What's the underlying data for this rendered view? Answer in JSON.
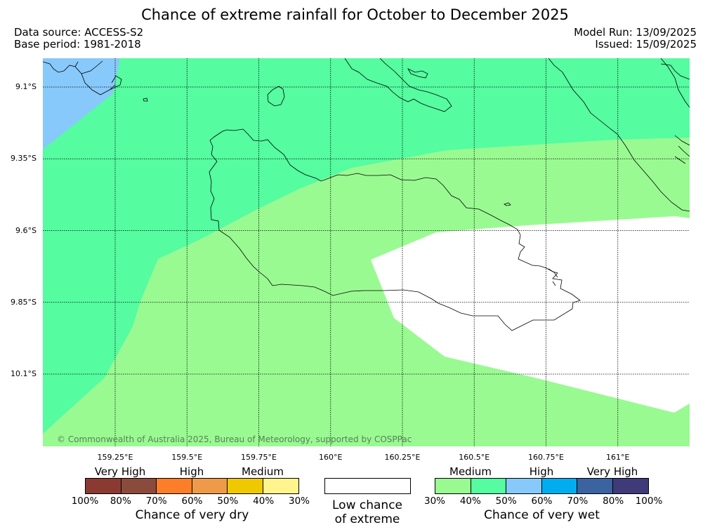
{
  "title": "Chance of extreme rainfall for October to December 2025",
  "meta": {
    "source": "Data source: ACCESS-S2",
    "base_period": "Base period: 1981-2018",
    "model_run": "Model Run: 13/09/2025",
    "issued": "Issued: 15/09/2025"
  },
  "map": {
    "lon_range": [
      159.03,
      161.25
    ],
    "lat_range": [
      -10.35,
      -9.0
    ],
    "lat_ticks": [
      {
        "value": -9.1,
        "label": "9.1°S"
      },
      {
        "value": -9.35,
        "label": "9.35°S"
      },
      {
        "value": -9.6,
        "label": "9.6°S"
      },
      {
        "value": -9.85,
        "label": "9.85°S"
      },
      {
        "value": -10.1,
        "label": "10.1°S"
      }
    ],
    "lon_ticks": [
      {
        "value": 159.25,
        "label": "159.25°E"
      },
      {
        "value": 159.5,
        "label": "159.5°E"
      },
      {
        "value": 159.75,
        "label": "159.75°E"
      },
      {
        "value": 160.0,
        "label": "160°E"
      },
      {
        "value": 160.25,
        "label": "160.25°E"
      },
      {
        "value": 160.5,
        "label": "160.5°E"
      },
      {
        "value": 160.75,
        "label": "160.75°E"
      },
      {
        "value": 161.0,
        "label": "161°E"
      }
    ],
    "regions": [
      {
        "category": "wet-40-50",
        "color": "#55fca0"
      },
      {
        "category": "wet-30-40",
        "color": "#9afa92"
      },
      {
        "category": "wet-50-60",
        "color": "#87c9fa"
      },
      {
        "category": "low-chance",
        "color": "#ffffff"
      }
    ],
    "copyright": "© Commonwealth of Australia 2025, Bureau of Meteorology, supported by COSPPac"
  },
  "legend": {
    "dry": {
      "groups": [
        "Very High",
        "High",
        "Medium"
      ],
      "colors": [
        "#8b3a32",
        "#8b4b3c",
        "#fd7e28",
        "#ee9a48",
        "#f0c800",
        "#fff58c"
      ],
      "ticks": [
        "100%",
        "80%",
        "70%",
        "60%",
        "50%",
        "40%",
        "30%"
      ],
      "title": "Chance of very dry"
    },
    "neutral": {
      "color": "#ffffff",
      "title_line1": "Low chance",
      "title_line2": "of extreme"
    },
    "wet": {
      "groups": [
        "Medium",
        "High",
        "Very High"
      ],
      "colors": [
        "#9afa92",
        "#55fca0",
        "#87c9fa",
        "#00aeef",
        "#3a63a0",
        "#3f3b78"
      ],
      "ticks": [
        "30%",
        "40%",
        "50%",
        "60%",
        "70%",
        "80%",
        "100%"
      ],
      "title": "Chance of very wet"
    }
  }
}
